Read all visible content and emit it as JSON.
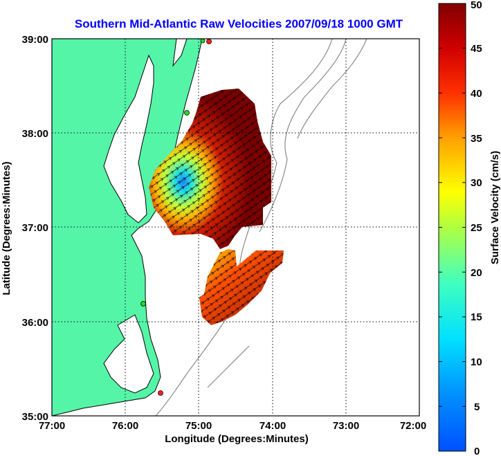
{
  "title": "Southern Mid-Atlantic Raw Velocities 2007/09/18 1000 GMT",
  "xlabel": "Longitude (Degrees:Minutes)",
  "ylabel": "Latitude (Degrees:Minutes)",
  "colorbar_label": "Surface Velocity (cm/s)",
  "x_ticks": [
    "77:00",
    "76:00",
    "75:00",
    "74:00",
    "73:00",
    "72:00"
  ],
  "y_ticks": [
    "39:00",
    "38:00",
    "37:00",
    "36:00",
    "35:00"
  ],
  "colorbar_ticks": [
    "50",
    "45",
    "40",
    "35",
    "30",
    "25",
    "20",
    "15",
    "10",
    "5",
    "0"
  ],
  "colors": {
    "land": "#55f5a8",
    "coastline": "#000000",
    "bathymetry": "#8a8a8a",
    "title": "#0000ff",
    "station_green": "#22dd22",
    "station_red": "#ff2020"
  },
  "chart_data": {
    "type": "map",
    "lon_range": [
      -77,
      -72
    ],
    "lat_range": [
      35,
      39
    ],
    "color_range_cm_s": [
      0,
      50
    ],
    "colormap": "jet",
    "grid": true,
    "stations": [
      {
        "lon": -74.87,
        "lat": 39.0,
        "color": "red"
      },
      {
        "lon": -74.9,
        "lat": 39.0,
        "color": "green"
      },
      {
        "lon": -75.15,
        "lat": 38.22,
        "color": "green"
      },
      {
        "lon": -75.75,
        "lat": 36.18,
        "color": "green"
      },
      {
        "lon": -75.52,
        "lat": 35.25,
        "color": "red"
      }
    ]
  }
}
